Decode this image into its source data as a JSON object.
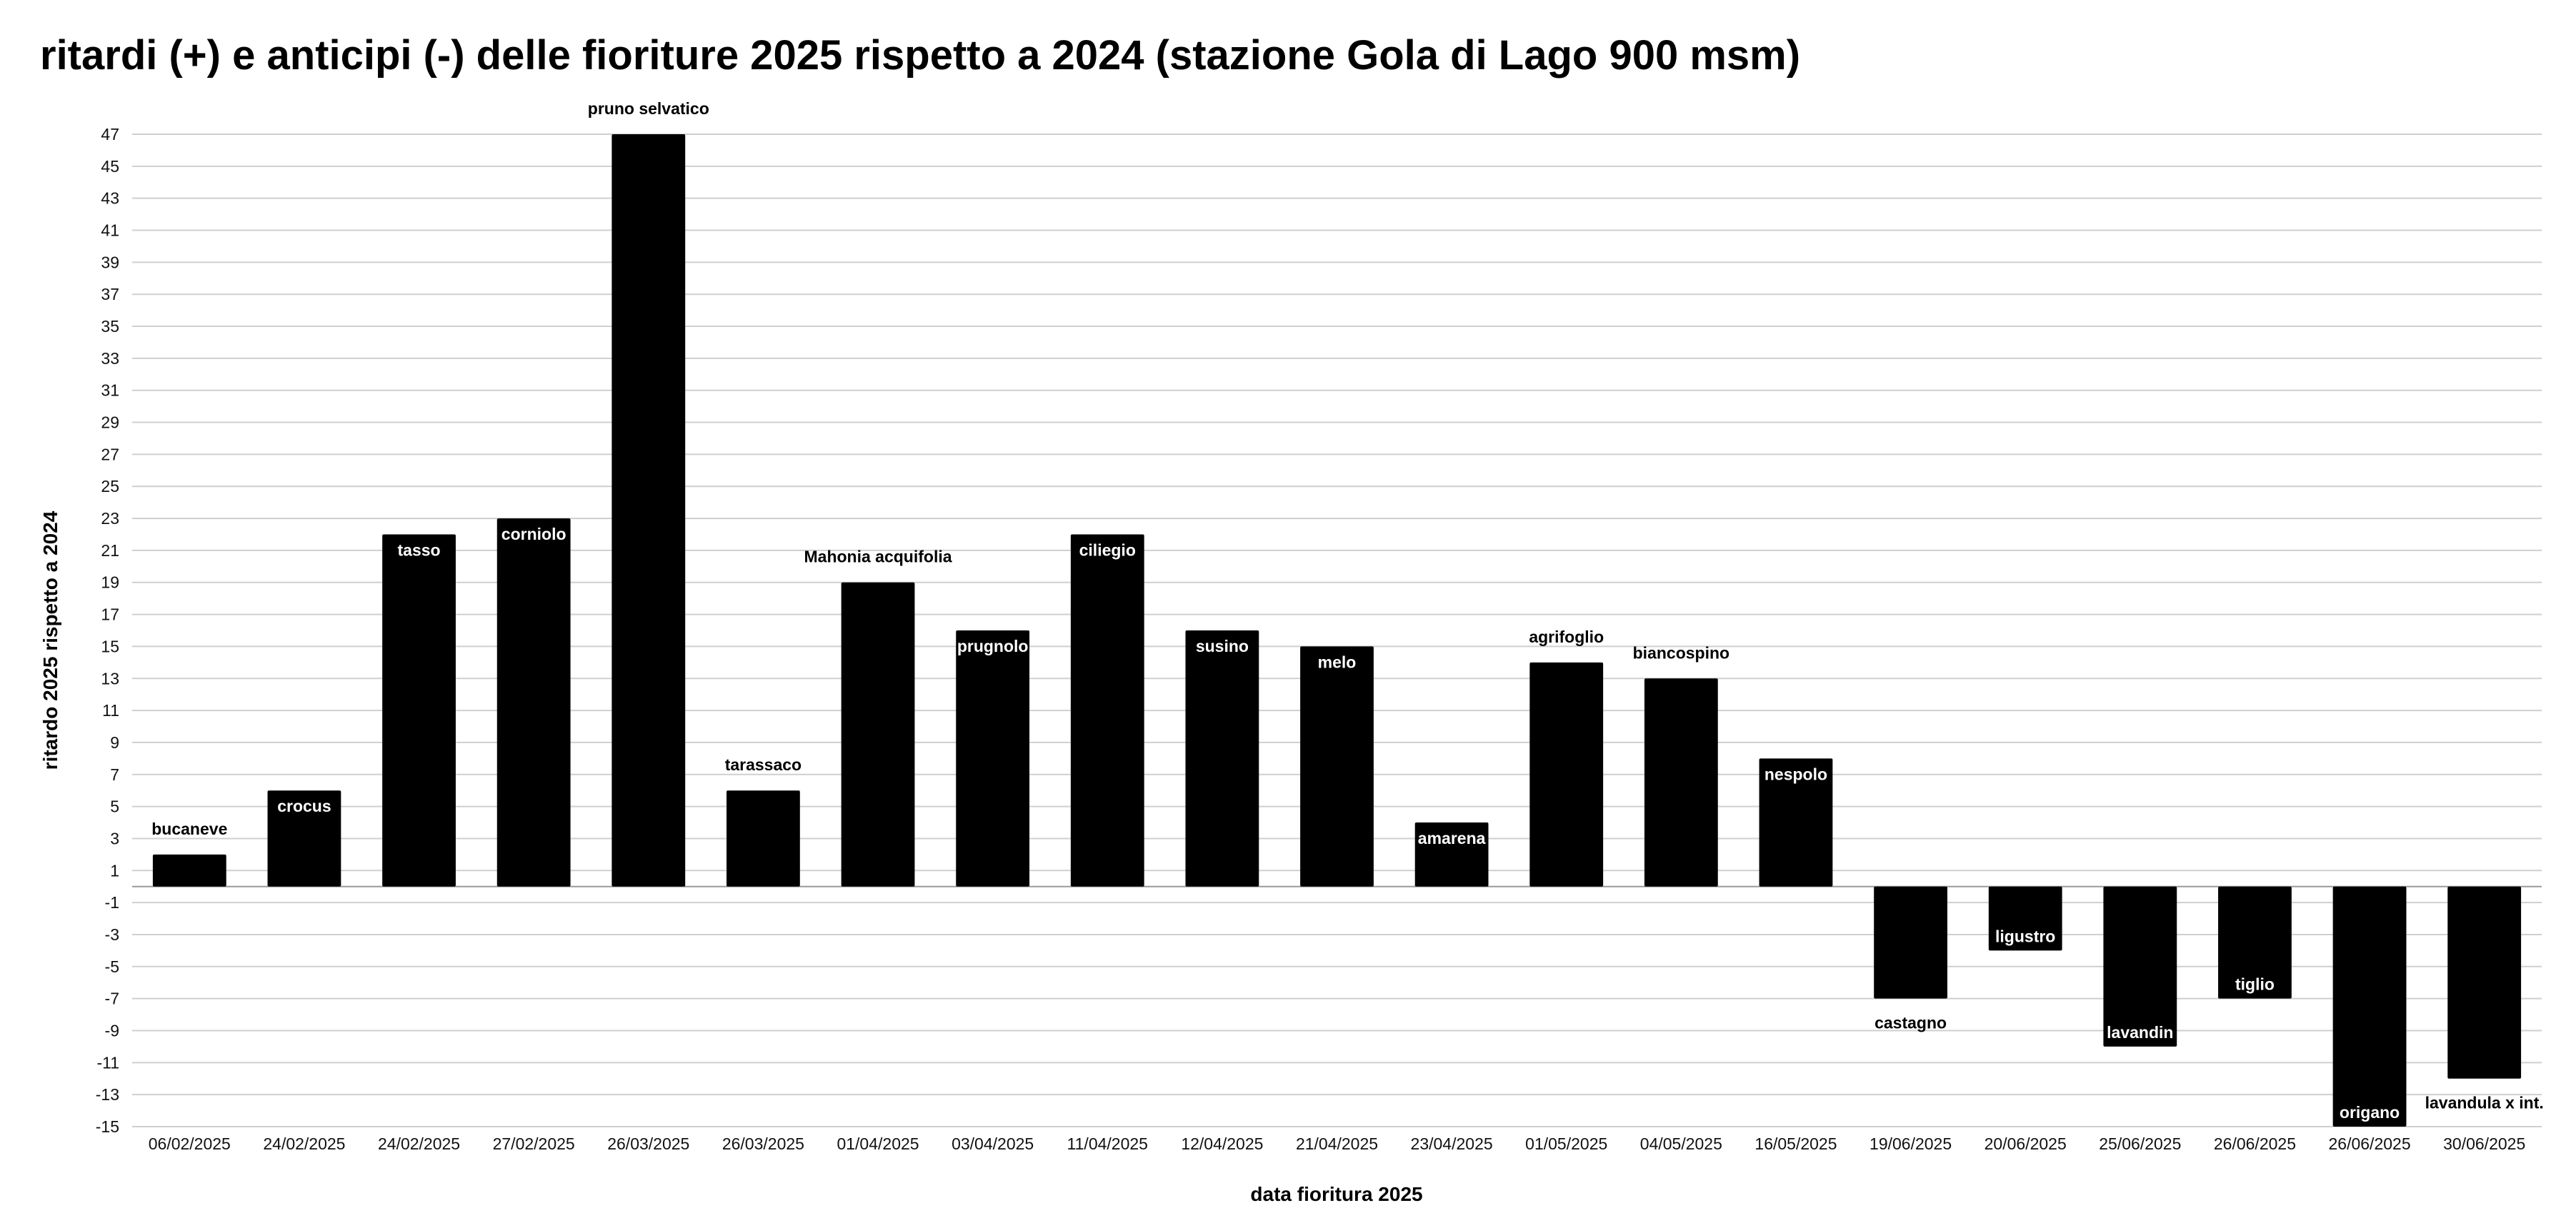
{
  "chart_data": {
    "type": "bar",
    "title": "ritardi (+) e anticipi (-) delle fioriture 2025 rispetto a 2024 (stazione Gola di Lago 900 msm)",
    "xlabel": "data fioritura 2025",
    "ylabel": "ritardo 2025 rispetto a 2024",
    "ylim": [
      -15,
      47
    ],
    "yticks": [
      47,
      45,
      43,
      41,
      39,
      37,
      35,
      33,
      31,
      29,
      27,
      25,
      23,
      21,
      19,
      17,
      15,
      13,
      11,
      9,
      7,
      5,
      3,
      1,
      -1,
      -3,
      -5,
      -7,
      -9,
      -11,
      -13,
      -15
    ],
    "grid": true,
    "legend": "none",
    "bar_color": "#000000",
    "categories": [
      "06/02/2025",
      "24/02/2025",
      "24/02/2025",
      "27/02/2025",
      "26/03/2025",
      "26/03/2025",
      "01/04/2025",
      "03/04/2025",
      "11/04/2025",
      "12/04/2025",
      "21/04/2025",
      "23/04/2025",
      "01/05/2025",
      "04/05/2025",
      "16/05/2025",
      "19/06/2025",
      "20/06/2025",
      "25/06/2025",
      "26/06/2025",
      "26/06/2025",
      "30/06/2025"
    ],
    "values": [
      2,
      6,
      22,
      23,
      47,
      6,
      19,
      16,
      22,
      16,
      15,
      4,
      14,
      13,
      8,
      -7,
      -4,
      -10,
      -7,
      -15,
      -12
    ],
    "data_labels": [
      "bucaneve",
      "crocus",
      "tasso",
      "corniolo",
      "pruno selvatico",
      "tarassaco",
      "Mahonia acquifolia",
      "prugnolo",
      "ciliegio",
      "susino",
      "melo",
      "amarena",
      "agrifoglio",
      "biancospino",
      "nespolo",
      "castagno",
      "ligustro",
      "lavandin",
      "tiglio",
      "origano",
      "lavandula x int."
    ],
    "label_inside": [
      false,
      true,
      true,
      true,
      false,
      false,
      false,
      true,
      true,
      true,
      true,
      true,
      false,
      false,
      true,
      false,
      true,
      true,
      true,
      true,
      false
    ]
  }
}
